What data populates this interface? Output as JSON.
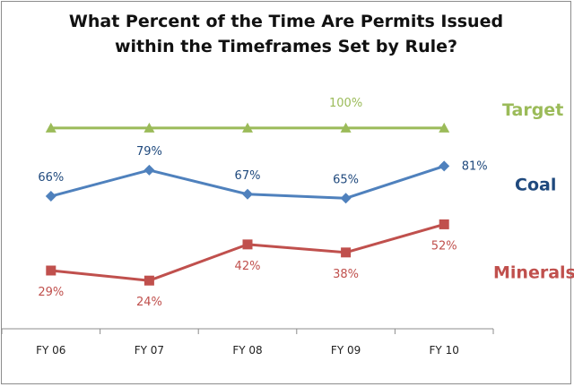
{
  "chart_data": {
    "type": "line",
    "title_line1": "What Percent of the Time Are Permits Issued",
    "title_line2": "within the Timeframes Set by Rule?",
    "categories": [
      "FY 06",
      "FY 07",
      "FY 08",
      "FY 09",
      "FY 10"
    ],
    "ylim": [
      0,
      120
    ],
    "grid": false,
    "legend": "series names at right end of lines",
    "series": [
      {
        "name": "Target",
        "values": [
          100,
          100,
          100,
          100,
          100
        ],
        "color": "#9bbb59",
        "marker": "triangle",
        "labels": [
          null,
          null,
          null,
          "100%",
          null
        ]
      },
      {
        "name": "Coal",
        "values": [
          66,
          79,
          67,
          65,
          81
        ],
        "color": "#4f81bd",
        "marker": "diamond",
        "labels": [
          "66%",
          "79%",
          "67%",
          "65%",
          "81%"
        ],
        "label_color": "#1f497d"
      },
      {
        "name": "Minerals",
        "values": [
          29,
          24,
          42,
          38,
          52
        ],
        "color": "#c0504d",
        "marker": "square",
        "labels": [
          "29%",
          "24%",
          "42%",
          "38%",
          "52%"
        ]
      }
    ]
  }
}
